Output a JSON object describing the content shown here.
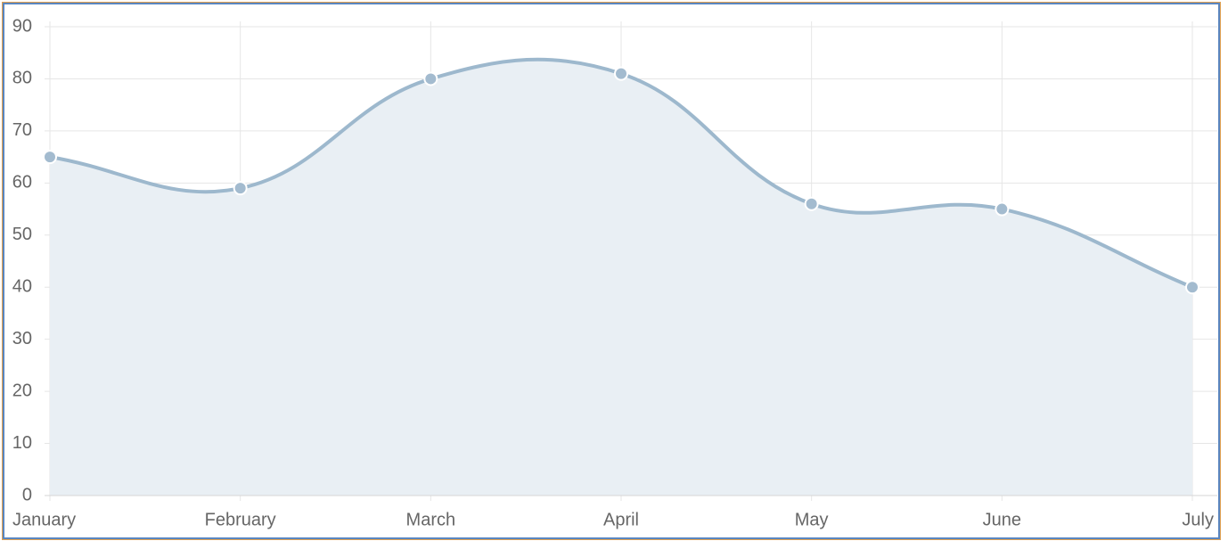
{
  "chart_data": {
    "type": "line",
    "categories": [
      "January",
      "February",
      "March",
      "April",
      "May",
      "June",
      "July"
    ],
    "values": [
      65,
      59,
      80,
      81,
      56,
      55,
      40
    ],
    "color": "#9db8cd",
    "fill_color": "#e9eff4",
    "point_color": "#a3bbcf",
    "ylim": [
      0,
      90
    ],
    "yticks": [
      0,
      10,
      20,
      30,
      40,
      50,
      60,
      70,
      80,
      90
    ],
    "grid": true,
    "fill": true,
    "tension": 0.4
  }
}
